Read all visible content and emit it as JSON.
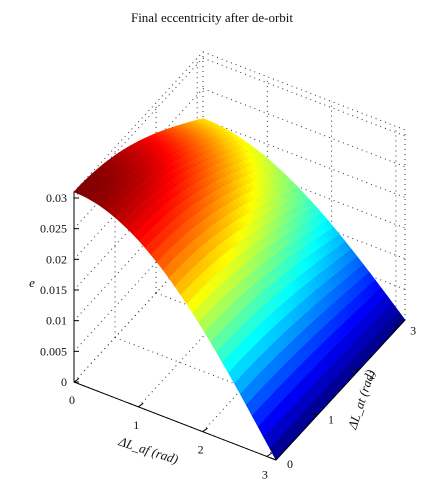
{
  "chart_data": {
    "type": "surface3d",
    "title": "Final eccentricity after de-orbit",
    "xlabel": "ΔL_af (rad)",
    "ylabel": "ΔL_at (rad)",
    "zlabel": "e",
    "x_ticks": [
      "0",
      "1",
      "2",
      "3"
    ],
    "y_ticks": [
      "0",
      "1",
      "2",
      "3"
    ],
    "z_ticks": [
      "0",
      "0.005",
      "0.01",
      "0.015",
      "0.02",
      "0.025",
      "0.03"
    ],
    "xlim": [
      0,
      3.1416
    ],
    "ylim": [
      0,
      3.1416
    ],
    "zlim": [
      0,
      0.031
    ],
    "grid": true,
    "colormap": "jet",
    "surface_model": "e = 0.031 * cos(ΔL_af / 2) * (0.65 + 0.35 * cos(ΔL_at / 2))",
    "corner_values": {
      "x0_y0": 0.031,
      "x0_ymax": 0.0202,
      "xmax_y0": 0.0,
      "xmax_ymax": 0.0
    }
  }
}
